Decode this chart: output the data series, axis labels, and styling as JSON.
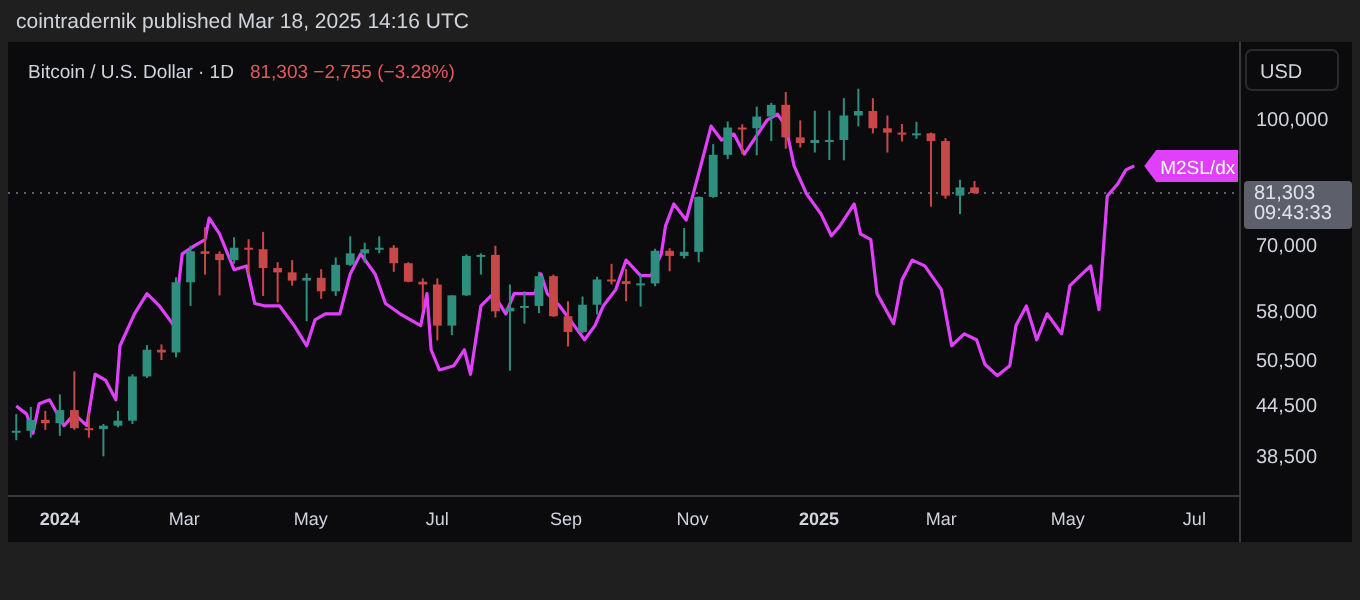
{
  "chart_data": {
    "type": "candlestick",
    "title": "Bitcoin / U.S. Dollar · 1D",
    "subtitle": "81,303 −2,755 (−3.28%)",
    "ylabel": "USD",
    "annotations": [
      "cointradernik published Mar 18, 2025 14:16 UTC"
    ],
    "log": "y",
    "grid": false,
    "legend": false,
    "xlim": [
      "2023-12-07",
      "2025-07-23"
    ],
    "xticks": [
      {
        "value": "2024-01-01",
        "label": "2024"
      },
      {
        "value": "2024-03-01",
        "label": "Mar"
      },
      {
        "value": "2024-05-01",
        "label": "May"
      },
      {
        "value": "2024-07-01",
        "label": "Jul"
      },
      {
        "value": "2024-09-01",
        "label": "Sep"
      },
      {
        "value": "2024-11-01",
        "label": "Nov"
      },
      {
        "value": "2025-01-01",
        "label": "2025"
      },
      {
        "value": "2025-03-01",
        "label": "Mar"
      },
      {
        "value": "2025-05-01",
        "label": "May"
      },
      {
        "value": "2025-07-01",
        "label": "Jul"
      }
    ],
    "ylim": [
      34400,
      122000
    ],
    "yticks": [
      {
        "value": 38500,
        "label": "38,500"
      },
      {
        "value": 44500,
        "label": "44,500"
      },
      {
        "value": 50500,
        "label": "50,500"
      },
      {
        "value": 58000,
        "label": "58,000"
      },
      {
        "value": 70000,
        "label": "70,000"
      },
      {
        "value": 100000,
        "label": "100,000"
      }
    ],
    "ref_lines": [
      {
        "axis": "y",
        "value": 81303,
        "label": "81,303 09:43:33",
        "color": "#5d606b",
        "line_style": "dotted"
      }
    ],
    "series": [
      {
        "type": "line",
        "name": "M2SL/dx",
        "color": "#e040fb",
        "x": [
          "2023-12-11",
          "2023-12-16",
          "2023-12-19",
          "2023-12-22",
          "2023-12-27",
          "2024-01-03",
          "2024-01-08",
          "2024-01-14",
          "2024-01-18",
          "2024-01-23",
          "2024-01-28",
          "2024-01-30",
          "2024-02-06",
          "2024-02-12",
          "2024-02-18",
          "2024-02-25",
          "2024-02-29",
          "2024-03-06",
          "2024-03-11",
          "2024-03-13",
          "2024-03-18",
          "2024-03-25",
          "2024-03-31",
          "2024-04-04",
          "2024-04-09",
          "2024-04-16",
          "2024-04-23",
          "2024-04-29",
          "2024-05-03",
          "2024-05-08",
          "2024-05-15",
          "2024-05-20",
          "2024-05-25",
          "2024-06-01",
          "2024-06-06",
          "2024-06-13",
          "2024-06-23",
          "2024-06-26",
          "2024-06-28",
          "2024-07-02",
          "2024-07-09",
          "2024-07-14",
          "2024-07-17",
          "2024-07-22",
          "2024-07-28",
          "2024-08-03",
          "2024-08-07",
          "2024-08-17",
          "2024-08-20",
          "2024-08-23",
          "2024-08-29",
          "2024-09-05",
          "2024-09-10",
          "2024-09-15",
          "2024-09-19",
          "2024-09-25",
          "2024-09-30",
          "2024-10-07",
          "2024-10-12",
          "2024-10-17",
          "2024-10-19",
          "2024-10-23",
          "2024-10-29",
          "2024-11-05",
          "2024-11-10",
          "2024-11-15",
          "2024-11-21",
          "2024-11-26",
          "2024-12-07",
          "2024-12-12",
          "2024-12-16",
          "2024-12-20",
          "2024-12-26",
          "2025-01-02",
          "2025-01-07",
          "2025-01-11",
          "2025-01-18",
          "2025-01-21",
          "2025-01-26",
          "2025-01-29",
          "2025-02-06",
          "2025-02-10",
          "2025-02-15",
          "2025-02-21",
          "2025-03-01",
          "2025-03-06",
          "2025-03-12",
          "2025-03-18",
          "2025-03-22",
          "2025-03-28",
          "2025-04-03",
          "2025-04-06",
          "2025-04-11",
          "2025-04-16",
          "2025-04-21",
          "2025-04-28",
          "2025-05-02",
          "2025-05-07",
          "2025-05-12",
          "2025-05-16",
          "2025-05-20",
          "2025-05-25",
          "2025-05-29",
          "2025-06-02"
        ],
        "values": [
          44400,
          43400,
          41100,
          44700,
          45200,
          42000,
          43400,
          42000,
          48600,
          47800,
          45200,
          52700,
          57700,
          61100,
          59000,
          55800,
          68400,
          70000,
          71200,
          75700,
          72400,
          65400,
          66100,
          59400,
          59000,
          59000,
          55800,
          52700,
          56700,
          57700,
          57700,
          64600,
          68400,
          64600,
          59400,
          57700,
          55800,
          61100,
          52100,
          49200,
          49800,
          52100,
          48600,
          59000,
          61100,
          57700,
          61100,
          61100,
          64600,
          61100,
          59000,
          55800,
          53600,
          55800,
          59000,
          61800,
          67200,
          64300,
          64300,
          68400,
          74000,
          78800,
          75300,
          87800,
          98300,
          94500,
          96100,
          90800,
          100000,
          101700,
          98300,
          87800,
          81100,
          76600,
          72000,
          74000,
          78800,
          72400,
          71200,
          61100,
          56100,
          63500,
          67200,
          66100,
          61800,
          52700,
          54500,
          53600,
          50000,
          48400,
          49800,
          55800,
          59000,
          53600,
          57700,
          54500,
          62500,
          64300,
          66100,
          58400,
          80600,
          83400,
          86800,
          87800
        ]
      },
      {
        "x": [
          "2023-12-11",
          "2023-12-18",
          "2023-12-25",
          "2024-01-01",
          "2024-01-08",
          "2024-01-15",
          "2024-01-22",
          "2024-01-29",
          "2024-02-05",
          "2024-02-12",
          "2024-02-19",
          "2024-02-26",
          "2024-03-04",
          "2024-03-11",
          "2024-03-18",
          "2024-03-25",
          "2024-04-01",
          "2024-04-08",
          "2024-04-15",
          "2024-04-22",
          "2024-04-29",
          "2024-05-06",
          "2024-05-13",
          "2024-05-20",
          "2024-05-27",
          "2024-06-03",
          "2024-06-10",
          "2024-06-17",
          "2024-06-24",
          "2024-07-01",
          "2024-07-08",
          "2024-07-15",
          "2024-07-22",
          "2024-07-29",
          "2024-08-05",
          "2024-08-12",
          "2024-08-19",
          "2024-08-26",
          "2024-09-02",
          "2024-09-09",
          "2024-09-16",
          "2024-09-23",
          "2024-09-30",
          "2024-10-07",
          "2024-10-14",
          "2024-10-21",
          "2024-10-28",
          "2024-11-04",
          "2024-11-11",
          "2024-11-18",
          "2024-11-25",
          "2024-12-02",
          "2024-12-09",
          "2024-12-16",
          "2024-12-23",
          "2024-12-30",
          "2025-01-06",
          "2025-01-13",
          "2025-01-20",
          "2025-01-27",
          "2025-02-03",
          "2025-02-10",
          "2025-02-17",
          "2025-02-24",
          "2025-03-03",
          "2025-03-10",
          "2025-03-17"
        ],
        "ohlc": [
          [
            41200,
            43400,
            40300,
            41400
          ],
          [
            41400,
            44300,
            40600,
            42700
          ],
          [
            42700,
            43800,
            41500,
            42300
          ],
          [
            42300,
            45900,
            40800,
            43900
          ],
          [
            43900,
            49000,
            41500,
            41700
          ],
          [
            41700,
            43500,
            40600,
            41600
          ],
          [
            41600,
            42200,
            38500,
            42000
          ],
          [
            42000,
            43800,
            41800,
            42600
          ],
          [
            42600,
            48600,
            42200,
            48300
          ],
          [
            48300,
            52800,
            48100,
            52100
          ],
          [
            52100,
            52900,
            50600,
            51700
          ],
          [
            51700,
            64000,
            51000,
            63100
          ],
          [
            63100,
            70000,
            59000,
            68900
          ],
          [
            68900,
            73800,
            64500,
            68400
          ],
          [
            68400,
            68900,
            60800,
            67200
          ],
          [
            67200,
            71700,
            66500,
            69600
          ],
          [
            69600,
            71300,
            64500,
            69300
          ],
          [
            69300,
            72800,
            60700,
            65700
          ],
          [
            65700,
            66800,
            59600,
            64900
          ],
          [
            64900,
            67200,
            62500,
            63400
          ],
          [
            63400,
            64700,
            56500,
            63900
          ],
          [
            63900,
            65500,
            60200,
            61500
          ],
          [
            61500,
            67700,
            60700,
            66300
          ],
          [
            66300,
            71900,
            66100,
            68500
          ],
          [
            68500,
            70600,
            66700,
            69300
          ],
          [
            69300,
            71900,
            68500,
            69600
          ],
          [
            69600,
            70100,
            65000,
            66600
          ],
          [
            66600,
            66800,
            63100,
            63200
          ],
          [
            63200,
            63800,
            58400,
            62700
          ],
          [
            62700,
            63800,
            53500,
            55800
          ],
          [
            55800,
            60800,
            54300,
            60800
          ],
          [
            60800,
            68300,
            60700,
            68000
          ],
          [
            68000,
            68500,
            64500,
            68200
          ],
          [
            68200,
            70000,
            57100,
            58100
          ],
          [
            58100,
            62700,
            49100,
            58700
          ],
          [
            58700,
            61500,
            56100,
            59000
          ],
          [
            59000,
            65000,
            57800,
            64200
          ],
          [
            64200,
            64500,
            57200,
            57300
          ],
          [
            57300,
            59800,
            52600,
            54800
          ],
          [
            54800,
            60600,
            54600,
            59200
          ],
          [
            59200,
            64100,
            57600,
            63600
          ],
          [
            63600,
            66500,
            62700,
            63300
          ],
          [
            63300,
            65500,
            59800,
            62800
          ],
          [
            62800,
            64500,
            58900,
            62900
          ],
          [
            62900,
            69400,
            62400,
            69000
          ],
          [
            69000,
            69500,
            65100,
            68000
          ],
          [
            68000,
            73600,
            67500,
            68800
          ],
          [
            68800,
            80500,
            66800,
            80400
          ],
          [
            80400,
            93400,
            80200,
            90600
          ],
          [
            90600,
            99600,
            89500,
            97900
          ],
          [
            97900,
            98800,
            90800,
            97700
          ],
          [
            97700,
            103900,
            90500,
            101000
          ],
          [
            101000,
            105000,
            94200,
            104400
          ],
          [
            104400,
            108300,
            92200,
            95200
          ],
          [
            95200,
            99900,
            92500,
            93700
          ],
          [
            93700,
            102700,
            91200,
            94500
          ],
          [
            94500,
            102700,
            89300,
            94500
          ],
          [
            94500,
            106400,
            89200,
            101300
          ],
          [
            101300,
            109300,
            98200,
            102600
          ],
          [
            102600,
            106400,
            96300,
            97700
          ],
          [
            97700,
            101300,
            91200,
            96500
          ],
          [
            96500,
            98900,
            94100,
            96100
          ],
          [
            96100,
            99500,
            94800,
            96300
          ],
          [
            96300,
            96500,
            78200,
            94200
          ],
          [
            94200,
            95000,
            80000,
            80700
          ],
          [
            80700,
            84400,
            76600,
            82600
          ],
          [
            82600,
            84100,
            81100,
            81303
          ]
        ]
      }
    ]
  }
}
